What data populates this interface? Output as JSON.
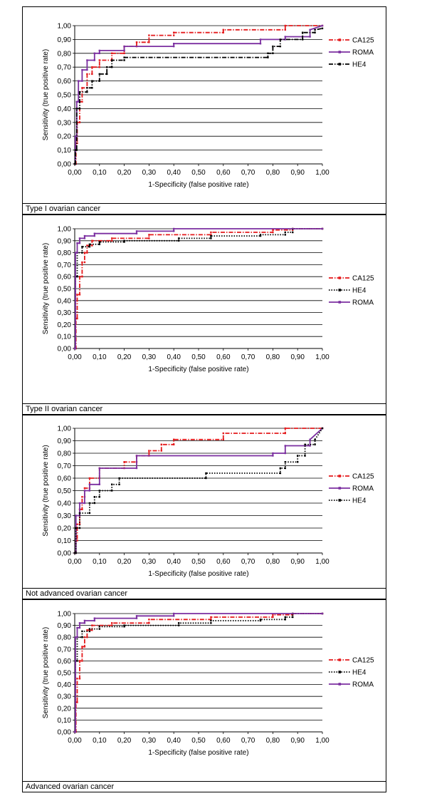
{
  "chart_data": [
    {
      "type": "line",
      "caption": "Type I ovarian cancer",
      "xlabel": "1-Specificity (false positive rate)",
      "ylabel": "Sensitivity (true positive rate)",
      "xlim": [
        0,
        1
      ],
      "ylim": [
        0,
        1
      ],
      "xticks": [
        "0,00",
        "0,10",
        "0,20",
        "0,30",
        "0,40",
        "0,50",
        "0,60",
        "0,70",
        "0,80",
        "0,90",
        "1,00"
      ],
      "yticks": [
        "0,00",
        "0,10",
        "0,20",
        "0,30",
        "0,40",
        "0,50",
        "0,60",
        "0,70",
        "0,80",
        "0,90",
        "1,00"
      ],
      "grid": "horizontal",
      "legend_position": "right",
      "series": [
        {
          "name": "CA125",
          "color": "#e41a1c",
          "dash": "dash-dot",
          "x": [
            0,
            0.005,
            0.005,
            0.01,
            0.01,
            0.02,
            0.02,
            0.03,
            0.03,
            0.05,
            0.05,
            0.07,
            0.07,
            0.1,
            0.1,
            0.15,
            0.15,
            0.2,
            0.2,
            0.25,
            0.25,
            0.3,
            0.3,
            0.4,
            0.4,
            0.6,
            0.6,
            0.85,
            0.85,
            1.0
          ],
          "y": [
            0,
            0,
            0.15,
            0.15,
            0.3,
            0.3,
            0.45,
            0.45,
            0.55,
            0.55,
            0.65,
            0.65,
            0.7,
            0.7,
            0.75,
            0.75,
            0.8,
            0.8,
            0.85,
            0.85,
            0.88,
            0.88,
            0.93,
            0.93,
            0.95,
            0.95,
            0.97,
            0.97,
            1.0,
            1.0
          ]
        },
        {
          "name": "ROMA",
          "color": "#7b2fa0",
          "dash": "solid",
          "x": [
            0,
            0.003,
            0.003,
            0.008,
            0.008,
            0.015,
            0.015,
            0.03,
            0.03,
            0.05,
            0.05,
            0.08,
            0.08,
            0.1,
            0.1,
            0.2,
            0.2,
            0.4,
            0.4,
            0.75,
            0.75,
            0.85,
            0.85,
            0.95,
            0.95,
            1.0
          ],
          "y": [
            0,
            0,
            0.2,
            0.2,
            0.45,
            0.45,
            0.6,
            0.6,
            0.68,
            0.68,
            0.75,
            0.75,
            0.8,
            0.8,
            0.82,
            0.82,
            0.85,
            0.85,
            0.87,
            0.87,
            0.9,
            0.9,
            0.92,
            0.92,
            0.97,
            1.0
          ]
        },
        {
          "name": "HE4",
          "color": "#000000",
          "dash": "dash-dot",
          "x": [
            0,
            0.003,
            0.003,
            0.008,
            0.008,
            0.02,
            0.02,
            0.05,
            0.05,
            0.07,
            0.07,
            0.1,
            0.1,
            0.13,
            0.13,
            0.15,
            0.15,
            0.2,
            0.2,
            0.78,
            0.78,
            0.8,
            0.8,
            0.83,
            0.83,
            0.92,
            0.92,
            0.97,
            0.97,
            1.0
          ],
          "y": [
            0,
            0,
            0.1,
            0.1,
            0.4,
            0.4,
            0.52,
            0.52,
            0.55,
            0.55,
            0.6,
            0.6,
            0.65,
            0.65,
            0.7,
            0.7,
            0.75,
            0.75,
            0.77,
            0.77,
            0.8,
            0.8,
            0.85,
            0.85,
            0.9,
            0.9,
            0.95,
            0.95,
            0.97,
            0.98
          ]
        }
      ]
    },
    {
      "type": "line",
      "caption": "Type II ovarian cancer",
      "xlabel": "1-Specificity (false positive rate)",
      "ylabel": "Sensitivity (true positive rate)",
      "xlim": [
        0,
        1
      ],
      "ylim": [
        0,
        1
      ],
      "xticks": [
        "0,00",
        "0,10",
        "0,20",
        "0,30",
        "0,40",
        "0,50",
        "0,60",
        "0,70",
        "0,80",
        "0,90",
        "1,00"
      ],
      "yticks": [
        "0,00",
        "0,10",
        "0,20",
        "0,30",
        "0,40",
        "0,50",
        "0,60",
        "0,70",
        "0,80",
        "0,90",
        "1,00"
      ],
      "grid": "horizontal",
      "legend_position": "right",
      "series": [
        {
          "name": "CA125",
          "color": "#e41a1c",
          "dash": "dash-dot",
          "x": [
            0,
            0.005,
            0.005,
            0.01,
            0.01,
            0.02,
            0.02,
            0.03,
            0.03,
            0.04,
            0.04,
            0.05,
            0.05,
            0.07,
            0.07,
            0.15,
            0.15,
            0.3,
            0.3,
            0.55,
            0.55,
            0.8,
            0.8,
            0.88,
            0.88,
            1.0
          ],
          "y": [
            0,
            0,
            0.25,
            0.25,
            0.45,
            0.45,
            0.6,
            0.6,
            0.72,
            0.72,
            0.8,
            0.8,
            0.86,
            0.86,
            0.9,
            0.9,
            0.92,
            0.92,
            0.95,
            0.95,
            0.97,
            0.97,
            0.99,
            0.99,
            1.0,
            1.0
          ]
        },
        {
          "name": "HE4",
          "color": "#000000",
          "dash": "dotted",
          "x": [
            0,
            0.003,
            0.003,
            0.01,
            0.01,
            0.03,
            0.03,
            0.06,
            0.06,
            0.1,
            0.1,
            0.2,
            0.2,
            0.42,
            0.42,
            0.55,
            0.55,
            0.75,
            0.75,
            0.85,
            0.85,
            0.88,
            0.88,
            1.0
          ],
          "y": [
            0,
            0,
            0.6,
            0.6,
            0.8,
            0.8,
            0.85,
            0.85,
            0.87,
            0.87,
            0.89,
            0.89,
            0.9,
            0.9,
            0.92,
            0.92,
            0.94,
            0.94,
            0.95,
            0.95,
            0.97,
            0.97,
            1.0,
            1.0
          ]
        },
        {
          "name": "ROMA",
          "color": "#7b2fa0",
          "dash": "solid",
          "x": [
            0,
            0.003,
            0.003,
            0.01,
            0.01,
            0.02,
            0.02,
            0.04,
            0.04,
            0.08,
            0.08,
            0.25,
            0.25,
            0.4,
            0.4,
            1.0
          ],
          "y": [
            0,
            0,
            0.8,
            0.8,
            0.88,
            0.88,
            0.92,
            0.92,
            0.94,
            0.94,
            0.96,
            0.96,
            0.98,
            0.98,
            1.0,
            1.0
          ]
        }
      ]
    },
    {
      "type": "line",
      "caption": "Not advanced ovarian cancer",
      "xlabel": "1-Specificity (false positive rate)",
      "ylabel": "Sensitivity (true positive rate)",
      "xlim": [
        0,
        1
      ],
      "ylim": [
        0,
        1
      ],
      "xticks": [
        "0,00",
        "0,10",
        "0,20",
        "0,30",
        "0,40",
        "0,50",
        "0,60",
        "0,70",
        "0,80",
        "0,90",
        "1,00"
      ],
      "yticks": [
        "0,00",
        "0,10",
        "0,20",
        "0,30",
        "0,40",
        "0,50",
        "0,60",
        "0,70",
        "0,80",
        "0,90",
        "1,00"
      ],
      "grid": "horizontal",
      "legend_position": "right",
      "series": [
        {
          "name": "CA125",
          "color": "#e41a1c",
          "dash": "dash-dot",
          "x": [
            0,
            0.005,
            0.005,
            0.01,
            0.01,
            0.02,
            0.02,
            0.03,
            0.03,
            0.04,
            0.04,
            0.06,
            0.06,
            0.1,
            0.1,
            0.2,
            0.2,
            0.25,
            0.25,
            0.3,
            0.3,
            0.35,
            0.35,
            0.4,
            0.4,
            0.6,
            0.6,
            0.85,
            0.85,
            1.0
          ],
          "y": [
            0,
            0,
            0.1,
            0.1,
            0.23,
            0.23,
            0.35,
            0.35,
            0.45,
            0.45,
            0.52,
            0.52,
            0.6,
            0.6,
            0.68,
            0.68,
            0.73,
            0.73,
            0.78,
            0.78,
            0.82,
            0.82,
            0.87,
            0.87,
            0.91,
            0.91,
            0.96,
            0.96,
            1.0,
            1.0
          ]
        },
        {
          "name": "ROMA",
          "color": "#7b2fa0",
          "dash": "solid",
          "x": [
            0,
            0.005,
            0.005,
            0.02,
            0.02,
            0.04,
            0.04,
            0.06,
            0.06,
            0.1,
            0.1,
            0.25,
            0.25,
            0.8,
            0.8,
            0.85,
            0.85,
            0.95,
            0.95,
            1.0
          ],
          "y": [
            0,
            0,
            0.3,
            0.3,
            0.4,
            0.4,
            0.5,
            0.5,
            0.55,
            0.55,
            0.68,
            0.68,
            0.78,
            0.78,
            0.8,
            0.8,
            0.86,
            0.86,
            0.91,
            1.0
          ]
        },
        {
          "name": "HE4",
          "color": "#000000",
          "dash": "dotted",
          "x": [
            0,
            0.005,
            0.005,
            0.02,
            0.02,
            0.06,
            0.06,
            0.08,
            0.08,
            0.1,
            0.1,
            0.15,
            0.15,
            0.18,
            0.18,
            0.53,
            0.53,
            0.83,
            0.83,
            0.85,
            0.85,
            0.9,
            0.9,
            0.93,
            0.93,
            0.97,
            0.97,
            1.0
          ],
          "y": [
            0,
            0,
            0.2,
            0.2,
            0.32,
            0.32,
            0.4,
            0.4,
            0.45,
            0.45,
            0.5,
            0.5,
            0.55,
            0.55,
            0.6,
            0.6,
            0.64,
            0.64,
            0.68,
            0.68,
            0.73,
            0.73,
            0.78,
            0.78,
            0.87,
            0.87,
            0.91,
            1.0
          ]
        }
      ]
    },
    {
      "type": "line",
      "caption": "Advanced ovarian cancer",
      "xlabel": "1-Specificity (false positive rate)",
      "ylabel": "Sensitivity (true positive rate)",
      "xlim": [
        0,
        1
      ],
      "ylim": [
        0,
        1
      ],
      "xticks": [
        "0,00",
        "0,10",
        "0,20",
        "0,30",
        "0,40",
        "0,50",
        "0,60",
        "0,70",
        "0,80",
        "0,90",
        "1,00"
      ],
      "yticks": [
        "0,00",
        "0,10",
        "0,20",
        "0,30",
        "0,40",
        "0,50",
        "0,60",
        "0,70",
        "0,80",
        "0,90",
        "1,00"
      ],
      "grid": "horizontal",
      "legend_position": "right",
      "series": [
        {
          "name": "CA125",
          "color": "#e41a1c",
          "dash": "dash-dot",
          "x": [
            0,
            0.005,
            0.005,
            0.01,
            0.01,
            0.02,
            0.02,
            0.03,
            0.03,
            0.04,
            0.04,
            0.05,
            0.05,
            0.07,
            0.07,
            0.15,
            0.15,
            0.3,
            0.3,
            0.55,
            0.55,
            0.8,
            0.8,
            0.88,
            0.88,
            1.0
          ],
          "y": [
            0,
            0,
            0.25,
            0.25,
            0.45,
            0.45,
            0.6,
            0.6,
            0.72,
            0.72,
            0.8,
            0.8,
            0.86,
            0.86,
            0.9,
            0.9,
            0.92,
            0.92,
            0.95,
            0.95,
            0.97,
            0.97,
            0.99,
            0.99,
            1.0,
            1.0
          ]
        },
        {
          "name": "HE4",
          "color": "#000000",
          "dash": "dotted",
          "x": [
            0,
            0.003,
            0.003,
            0.01,
            0.01,
            0.03,
            0.03,
            0.06,
            0.06,
            0.1,
            0.1,
            0.2,
            0.2,
            0.42,
            0.42,
            0.55,
            0.55,
            0.75,
            0.75,
            0.85,
            0.85,
            0.88,
            0.88,
            1.0
          ],
          "y": [
            0,
            0,
            0.6,
            0.6,
            0.8,
            0.8,
            0.85,
            0.85,
            0.87,
            0.87,
            0.89,
            0.89,
            0.9,
            0.9,
            0.92,
            0.92,
            0.94,
            0.94,
            0.95,
            0.95,
            0.97,
            0.97,
            1.0,
            1.0
          ]
        },
        {
          "name": "ROMA",
          "color": "#7b2fa0",
          "dash": "solid",
          "x": [
            0,
            0.003,
            0.003,
            0.01,
            0.01,
            0.02,
            0.02,
            0.04,
            0.04,
            0.08,
            0.08,
            0.25,
            0.25,
            0.4,
            0.4,
            1.0
          ],
          "y": [
            0,
            0,
            0.8,
            0.8,
            0.88,
            0.88,
            0.92,
            0.92,
            0.94,
            0.94,
            0.96,
            0.96,
            0.98,
            0.98,
            1.0,
            1.0
          ]
        }
      ]
    }
  ]
}
